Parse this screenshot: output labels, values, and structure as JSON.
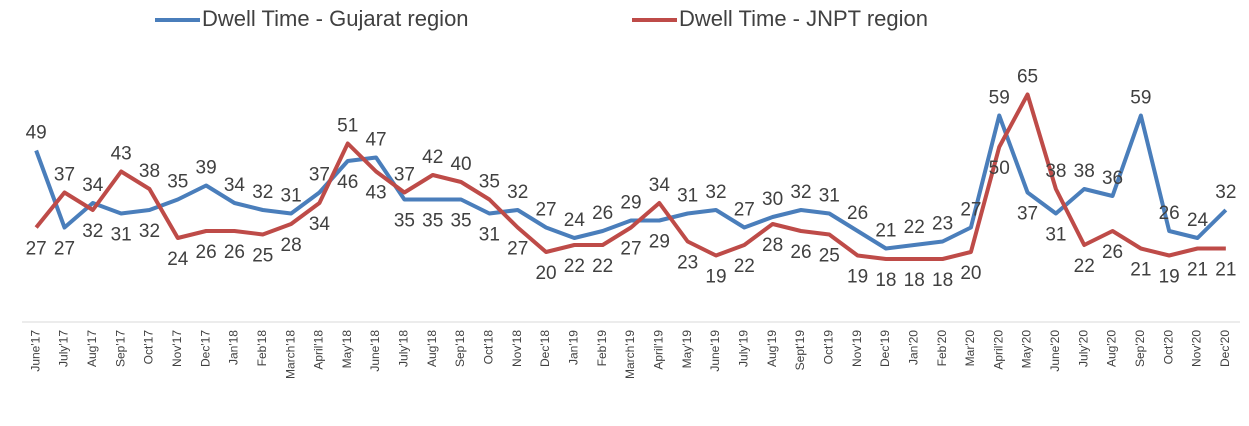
{
  "chart_data": {
    "type": "line",
    "categories": [
      "June'17",
      "July'17",
      "Aug'17",
      "Sep'17",
      "Oct'17",
      "Nov'17",
      "Dec'17",
      "Jan'18",
      "Feb'18",
      "March'18",
      "April'18",
      "May'18",
      "June'18",
      "July'18",
      "Aug'18",
      "Sep'18",
      "Oct'18",
      "Nov'18",
      "Dec'18",
      "Jan'19",
      "Feb'19",
      "March'19",
      "April'19",
      "May'19",
      "June'19",
      "July'19",
      "Aug'19",
      "Sept'19",
      "Oct'19",
      "Nov'19",
      "Dec'19",
      "Jan'20",
      "Feb'20",
      "Mar'20",
      "April'20",
      "May'20",
      "June'20",
      "July'20",
      "Aug'20",
      "Sep'20",
      "Oct'20",
      "Nov'20",
      "Dec'20"
    ],
    "series": [
      {
        "name": "Dwell Time - Gujarat region",
        "color": "#4a7ebb",
        "values": [
          49,
          27,
          34,
          31,
          32,
          35,
          39,
          34,
          32,
          31,
          37,
          46,
          47,
          35,
          35,
          35,
          31,
          32,
          27,
          24,
          26,
          29,
          29,
          31,
          32,
          27,
          30,
          32,
          31,
          26,
          21,
          22,
          23,
          27,
          59,
          37,
          31,
          38,
          36,
          59,
          26,
          24,
          32
        ]
      },
      {
        "name": "Dwell Time - JNPT region",
        "color": "#be4b48",
        "values": [
          27,
          37,
          32,
          43,
          38,
          24,
          26,
          26,
          25,
          28,
          34,
          51,
          43,
          37,
          42,
          40,
          35,
          27,
          20,
          22,
          22,
          27,
          34,
          23,
          19,
          22,
          28,
          26,
          25,
          19,
          18,
          18,
          18,
          20,
          50,
          65,
          38,
          22,
          26,
          21,
          19,
          21,
          21
        ]
      }
    ],
    "ylim": [
      0,
      70
    ]
  }
}
